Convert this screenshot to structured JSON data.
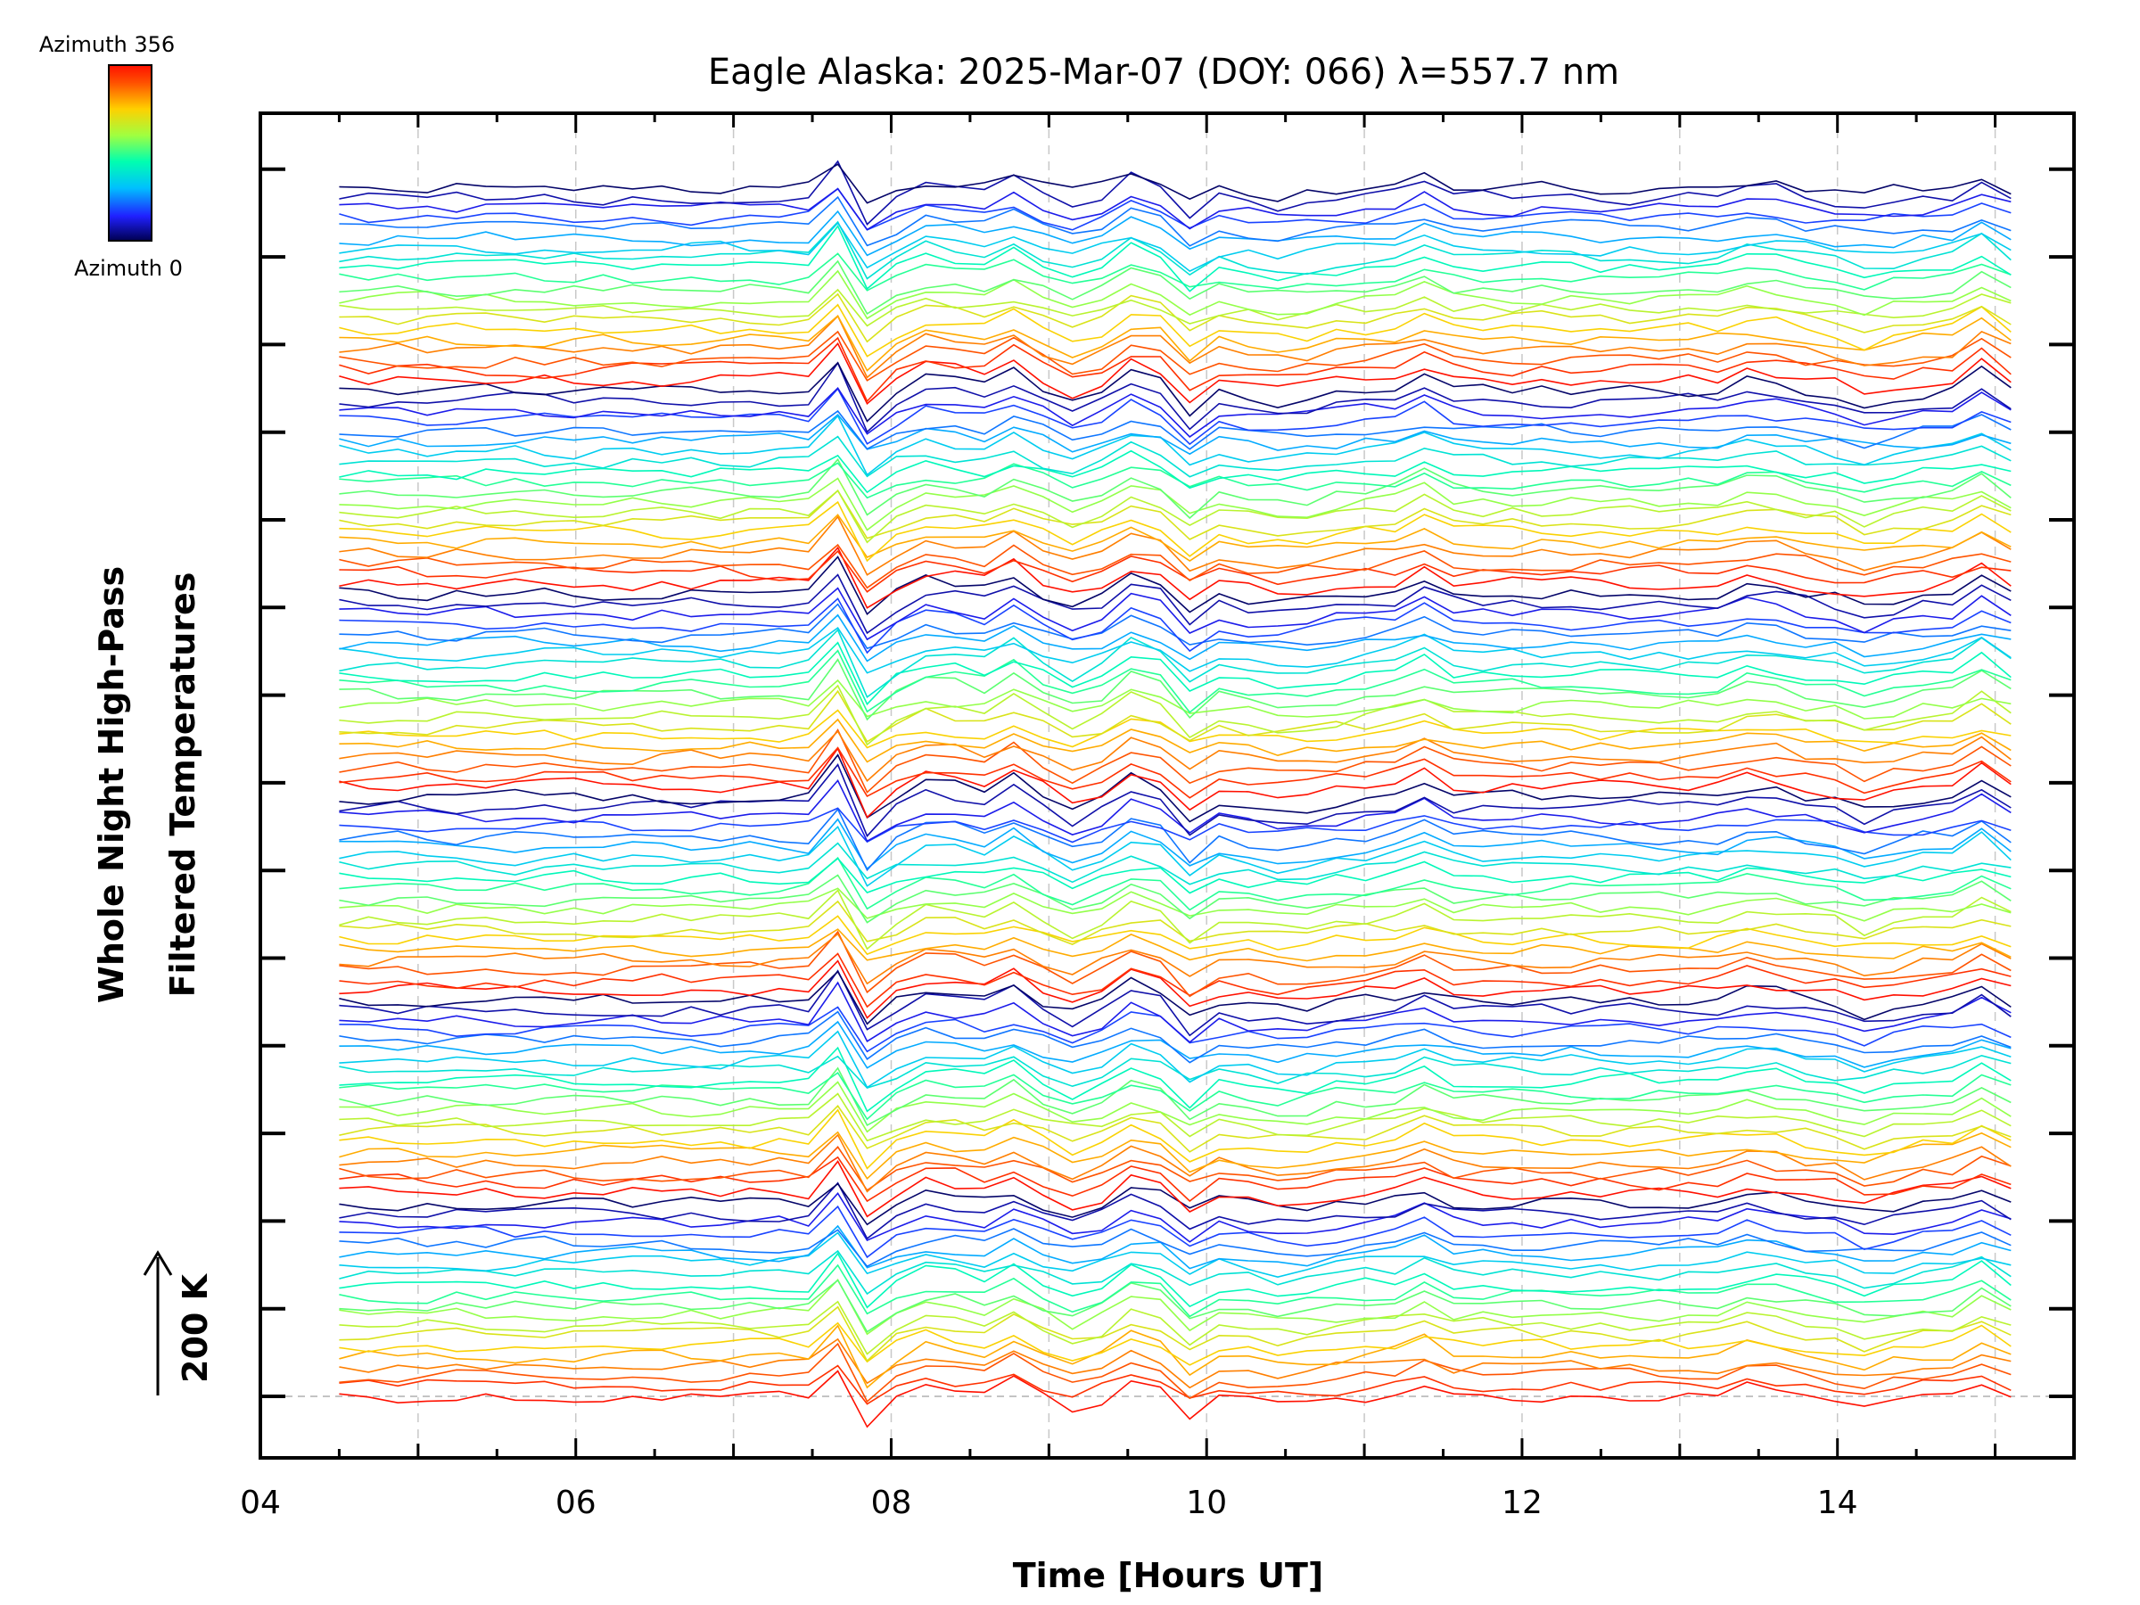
{
  "chart_data": {
    "type": "line",
    "title": "Eagle Alaska: 2025-Mar-07 (DOY: 066) λ=557.7 nm",
    "xlabel": "Time [Hours UT]",
    "ylabel_line1": "Whole Night High-Pass",
    "ylabel_line2": "Filtered Temperatures",
    "scale_label": "200 K",
    "xlim": [
      4,
      15.5
    ],
    "x_tick_labels": [
      "04",
      "06",
      "08",
      "10",
      "12",
      "14"
    ],
    "x_ticks": [
      4,
      6,
      8,
      10,
      12,
      14
    ],
    "x_minor_grid": [
      5,
      7,
      9,
      11,
      13,
      15
    ],
    "colorbar": {
      "top_label": "Azimuth  356",
      "bottom_label": "Azimuth  0",
      "colors": [
        "#000050",
        "#2020ff",
        "#00c0ff",
        "#00ffb0",
        "#a0ff40",
        "#ffd000",
        "#ff5000",
        "#ff1000"
      ]
    },
    "time_range": [
      4.5,
      15.1
    ],
    "num_traces": 120,
    "azimuth_range": [
      0,
      356
    ],
    "traces_per_group": 20,
    "groups": 6,
    "event_features": [
      {
        "time": 7.65,
        "shape": "peak"
      },
      {
        "time": 7.9,
        "shape": "dip"
      },
      {
        "time": 8.3,
        "shape": "peak"
      },
      {
        "time": 8.75,
        "shape": "peak"
      },
      {
        "time": 9.2,
        "shape": "dip"
      },
      {
        "time": 9.6,
        "shape": "peak"
      },
      {
        "time": 9.85,
        "shape": "dip"
      },
      {
        "time": 10.5,
        "shape": "dip"
      },
      {
        "time": 11.35,
        "shape": "peak"
      },
      {
        "time": 13.5,
        "shape": "peak"
      },
      {
        "time": 14.2,
        "shape": "dip"
      },
      {
        "time": 14.9,
        "shape": "peak"
      }
    ]
  }
}
